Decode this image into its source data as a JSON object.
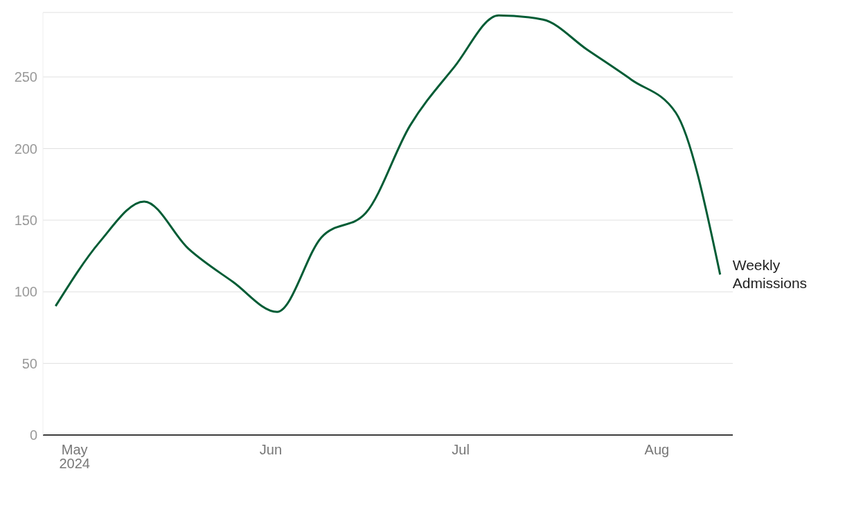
{
  "chart_data": {
    "type": "line",
    "x": [
      "2024-04-28",
      "2024-05-05",
      "2024-05-12",
      "2024-05-19",
      "2024-05-26",
      "2024-06-02",
      "2024-06-09",
      "2024-06-16",
      "2024-06-23",
      "2024-06-30",
      "2024-07-07",
      "2024-07-14",
      "2024-07-21",
      "2024-07-28",
      "2024-08-04",
      "2024-08-11"
    ],
    "series": [
      {
        "name": "Weekly Admissions",
        "color": "#005c35",
        "values": [
          90,
          135,
          163,
          130,
          107,
          86,
          138,
          155,
          216,
          257,
          293,
          290,
          269,
          248,
          225,
          112
        ]
      }
    ],
    "xlim": [
      "2024-04-26",
      "2024-08-13"
    ],
    "xticks": [
      {
        "value": "2024-05-01",
        "label": "May 2024"
      },
      {
        "value": "2024-06-01",
        "label": "Jun"
      },
      {
        "value": "2024-07-01",
        "label": "Jul"
      },
      {
        "value": "2024-08-01",
        "label": "Aug"
      }
    ],
    "ylim": [
      0,
      295
    ],
    "yticks": [
      0,
      50,
      100,
      150,
      200,
      250
    ],
    "grid": "y",
    "legend": false,
    "marker": "none",
    "line_style": "solid"
  }
}
